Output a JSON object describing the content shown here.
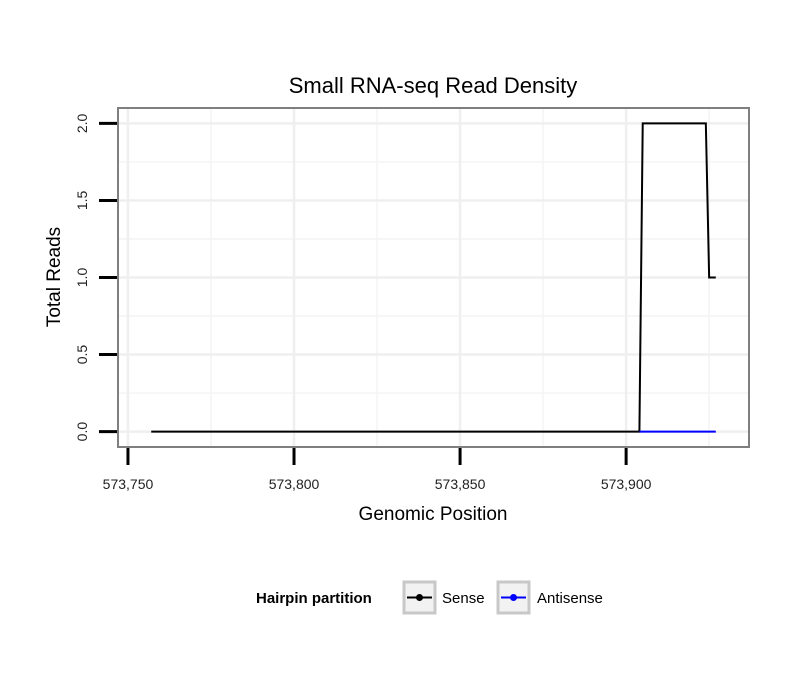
{
  "chart_data": {
    "type": "line",
    "title": "Small RNA-seq Read Density",
    "xlabel": "Genomic Position",
    "ylabel": "Total Reads",
    "xlim": [
      573747,
      573937
    ],
    "ylim": [
      -0.1,
      2.1
    ],
    "x_ticks": [
      573750,
      573800,
      573850,
      573900
    ],
    "x_tick_labels": [
      "573,750",
      "573,800",
      "573,850",
      "573,900"
    ],
    "y_ticks": [
      0,
      0.5,
      1,
      1.5,
      2
    ],
    "y_tick_labels": [
      "0.0",
      "0.5",
      "1.0",
      "1.5",
      "2.0"
    ],
    "grid": true,
    "legend": {
      "title": "Hairpin partition",
      "position": "bottom"
    },
    "series": [
      {
        "name": "Sense",
        "color": "#000000",
        "x": [
          573757,
          573904,
          573905,
          573924,
          573925,
          573927
        ],
        "y": [
          0,
          0,
          2,
          2,
          1,
          1
        ]
      },
      {
        "name": "Antisense",
        "color": "#0000ff",
        "x": [
          573904,
          573927
        ],
        "y": [
          0,
          0
        ]
      }
    ]
  }
}
